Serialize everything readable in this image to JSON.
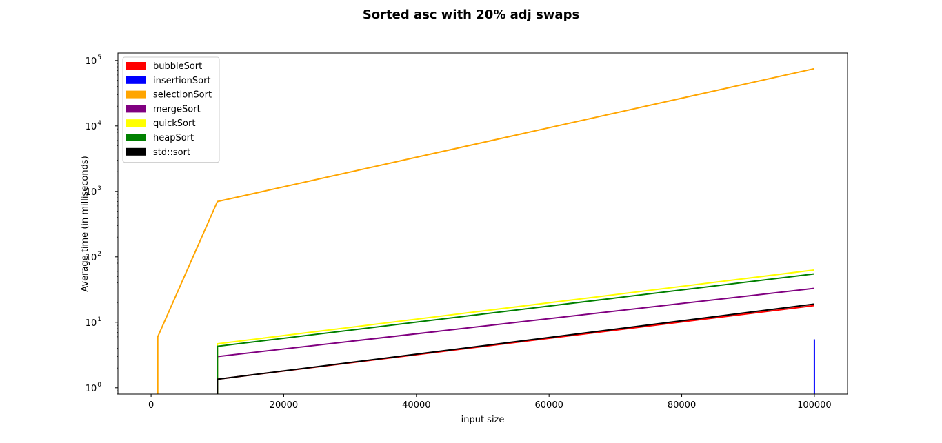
{
  "chart_data": {
    "type": "line",
    "title": "Sorted asc with 20% adj swaps",
    "xlabel": "input size",
    "ylabel": "Average time (in milliseconds)",
    "xlim": [
      -5000,
      105000
    ],
    "ylim": [
      0.8,
      130000
    ],
    "yscale": "log",
    "xticks": [
      0,
      20000,
      40000,
      60000,
      80000,
      100000
    ],
    "yticks": [
      1,
      10,
      100,
      1000,
      10000,
      100000
    ],
    "yticks_exponents": [
      "0",
      "1",
      "2",
      "3",
      "4",
      "5"
    ],
    "ytick_base": "10",
    "grid": false,
    "legend_position": "upper-left",
    "series": [
      {
        "name": "bubbleSort",
        "color": "#ff0000",
        "x": [
          10000,
          10000,
          100000
        ],
        "y": [
          0.5,
          1.35,
          18
        ]
      },
      {
        "name": "insertionSort",
        "color": "#0000ff",
        "x": [
          99999,
          100000
        ],
        "y": [
          0.5,
          5.5
        ]
      },
      {
        "name": "selectionSort",
        "color": "#ffa500",
        "x": [
          1000,
          1000,
          10000,
          100000
        ],
        "y": [
          0.5,
          6.0,
          700,
          75000
        ]
      },
      {
        "name": "mergeSort",
        "color": "#800080",
        "x": [
          10000,
          10000,
          100000
        ],
        "y": [
          0.5,
          3.0,
          33
        ]
      },
      {
        "name": "quickSort",
        "color": "#ffff00",
        "x": [
          10000,
          10000,
          100000
        ],
        "y": [
          0.5,
          4.7,
          63
        ]
      },
      {
        "name": "heapSort",
        "color": "#008000",
        "x": [
          10000,
          10000,
          100000
        ],
        "y": [
          0.5,
          4.3,
          55
        ]
      },
      {
        "name": "std::sort",
        "color": "#000000",
        "x": [
          10000,
          10000,
          100000
        ],
        "y": [
          0.5,
          1.35,
          19
        ]
      }
    ]
  }
}
